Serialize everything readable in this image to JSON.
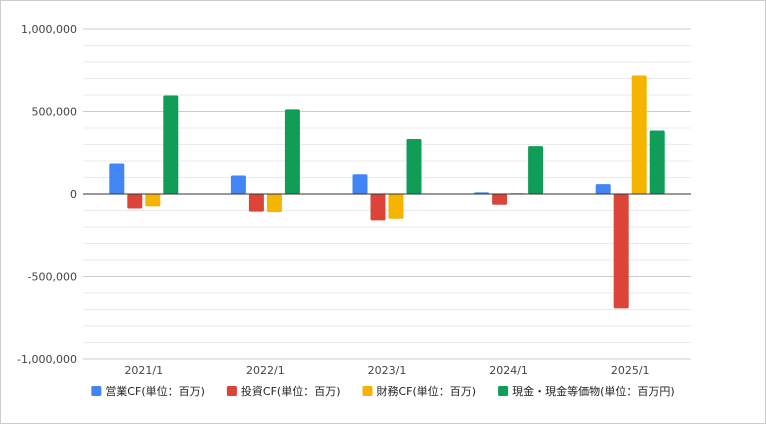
{
  "chart_data": {
    "type": "bar",
    "categories": [
      "2021/1",
      "2022/1",
      "2023/1",
      "2024/1",
      "2025/1"
    ],
    "series": [
      {
        "name": "営業CF(単位：百万)",
        "color": "#4285f4",
        "values": [
          185000,
          112000,
          120000,
          10000,
          60000
        ]
      },
      {
        "name": "投資CF(単位：百万)",
        "color": "#db4437",
        "values": [
          -88000,
          -107000,
          -160000,
          -65000,
          -693000
        ]
      },
      {
        "name": "財務CF(単位：百万)",
        "color": "#f4b400",
        "values": [
          -75000,
          -110000,
          -150000,
          5000,
          718000
        ]
      },
      {
        "name": "現金・現金等価物(単位：百万円)",
        "color": "#0f9d58",
        "values": [
          597000,
          513000,
          333000,
          290000,
          385000
        ]
      }
    ],
    "yticks": [
      -1000000,
      -500000,
      0,
      500000,
      1000000
    ],
    "ytick_labels": [
      "-1,000,000",
      "-500,000",
      "0",
      "500,000",
      "1,000,000"
    ],
    "ylim": [
      -1000000,
      1000000
    ],
    "minor_gridlines": true,
    "legend_position": "bottom"
  }
}
